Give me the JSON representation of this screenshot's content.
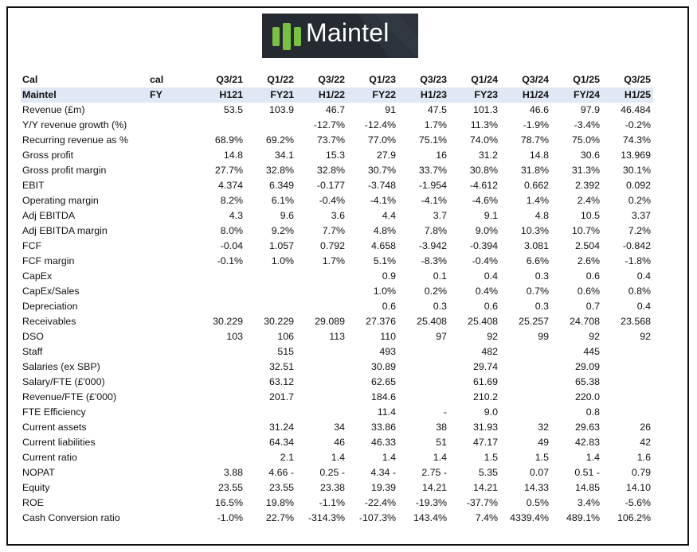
{
  "logo": {
    "text": "Maintel",
    "accent": "#78c142",
    "bg": "#252b31"
  },
  "header": [
    "Cal",
    "cal",
    "Q3/21",
    "Q1/22",
    "Q3/22",
    "Q1/23",
    "Q3/23",
    "Q1/24",
    "Q3/24",
    "Q1/25",
    "Q3/25"
  ],
  "subheader": [
    "Maintel",
    "FY",
    "H121",
    "FY21",
    "H1/22",
    "FY22",
    "H1/23",
    "FY23",
    "H1/24",
    "FY/24",
    "H1/25"
  ],
  "rows": [
    [
      "Revenue (£m)",
      "",
      "53.5",
      "103.9",
      "46.7",
      "91",
      "47.5",
      "101.3",
      "46.6",
      "97.9",
      "46.484"
    ],
    [
      "Y/Y revenue growth (%)",
      "",
      "",
      "",
      "-12.7%",
      "-12.4%",
      "1.7%",
      "11.3%",
      "-1.9%",
      "-3.4%",
      "-0.2%"
    ],
    [
      "Recurring revenue as %",
      "",
      "68.9%",
      "69.2%",
      "73.7%",
      "77.0%",
      "75.1%",
      "74.0%",
      "78.7%",
      "75.0%",
      "74.3%"
    ],
    [
      "Gross profit",
      "",
      "14.8",
      "34.1",
      "15.3",
      "27.9",
      "16",
      "31.2",
      "14.8",
      "30.6",
      "13.969"
    ],
    [
      "Gross profit margin",
      "",
      "27.7%",
      "32.8%",
      "32.8%",
      "30.7%",
      "33.7%",
      "30.8%",
      "31.8%",
      "31.3%",
      "30.1%"
    ],
    [
      "EBIT",
      "",
      "4.374",
      "6.349",
      "-0.177",
      "-3.748",
      "-1.954",
      "-4.612",
      "0.662",
      "2.392",
      "0.092"
    ],
    [
      "Operating margin",
      "",
      "8.2%",
      "6.1%",
      "-0.4%",
      "-4.1%",
      "-4.1%",
      "-4.6%",
      "1.4%",
      "2.4%",
      "0.2%"
    ],
    [
      "Adj EBITDA",
      "",
      "4.3",
      "9.6",
      "3.6",
      "4.4",
      "3.7",
      "9.1",
      "4.8",
      "10.5",
      "3.37"
    ],
    [
      "Adj EBITDA margin",
      "",
      "8.0%",
      "9.2%",
      "7.7%",
      "4.8%",
      "7.8%",
      "9.0%",
      "10.3%",
      "10.7%",
      "7.2%"
    ],
    [
      "FCF",
      "",
      "-0.04",
      "1.057",
      "0.792",
      "4.658",
      "-3.942",
      "-0.394",
      "3.081",
      "2.504",
      "-0.842"
    ],
    [
      "FCF margin",
      "",
      "-0.1%",
      "1.0%",
      "1.7%",
      "5.1%",
      "-8.3%",
      "-0.4%",
      "6.6%",
      "2.6%",
      "-1.8%"
    ],
    [
      "CapEx",
      "",
      "",
      "",
      "",
      "0.9",
      "0.1",
      "0.4",
      "0.3",
      "0.6",
      "0.4"
    ],
    [
      "CapEx/Sales",
      "",
      "",
      "",
      "",
      "1.0%",
      "0.2%",
      "0.4%",
      "0.7%",
      "0.6%",
      "0.8%"
    ],
    [
      "Depreciation",
      "",
      "",
      "",
      "",
      "0.6",
      "0.3",
      "0.6",
      "0.3",
      "0.7",
      "0.4"
    ],
    [
      "Receivables",
      "",
      "30.229",
      "30.229",
      "29.089",
      "27.376",
      "25.408",
      "25.408",
      "25.257",
      "24.708",
      "23.568"
    ],
    [
      "DSO",
      "",
      "103",
      "106",
      "113",
      "110",
      "97",
      "92",
      "99",
      "92",
      "92"
    ],
    [
      "Staff",
      "",
      "",
      "515",
      "",
      "493",
      "",
      "482",
      "",
      "445",
      ""
    ],
    [
      "Salaries (ex SBP)",
      "",
      "",
      "32.51",
      "",
      "30.89",
      "",
      "29.74",
      "",
      "29.09",
      ""
    ],
    [
      "Salary/FTE (£'000)",
      "",
      "",
      "63.12",
      "",
      "62.65",
      "",
      "61.69",
      "",
      "65.38",
      ""
    ],
    [
      "Revenue/FTE (£'000)",
      "",
      "",
      "201.7",
      "",
      "184.6",
      "",
      "210.2",
      "",
      "220.0",
      ""
    ],
    [
      "FTE Efficiency",
      "",
      "",
      "",
      "",
      "11.4",
      "-",
      "9.0",
      "",
      "0.8",
      ""
    ],
    [
      "Current assets",
      "",
      "",
      "31.24",
      "34",
      "33.86",
      "38",
      "31.93",
      "32",
      "29.63",
      "26"
    ],
    [
      "Current liabilities",
      "",
      "",
      "64.34",
      "46",
      "46.33",
      "51",
      "47.17",
      "49",
      "42.83",
      "42"
    ],
    [
      "Current ratio",
      "",
      "",
      "2.1",
      "1.4",
      "1.4",
      "1.4",
      "1.5",
      "1.5",
      "1.4",
      "1.6"
    ],
    [
      "NOPAT",
      "",
      "3.88",
      "4.66 -",
      "0.25 -",
      "4.34 -",
      "2.75 -",
      "5.35",
      "0.07",
      "0.51 -",
      "0.79"
    ],
    [
      "Equity",
      "",
      "23.55",
      "23.55",
      "23.38",
      "19.39",
      "14.21",
      "14.21",
      "14.33",
      "14.85",
      "14.10"
    ],
    [
      "ROE",
      "",
      "16.5%",
      "19.8%",
      "-1.1%",
      "-22.4%",
      "-19.3%",
      "-37.7%",
      "0.5%",
      "3.4%",
      "-5.6%"
    ],
    [
      "Cash Conversion ratio",
      "",
      "-1.0%",
      "22.7%",
      "-314.3%",
      "-107.3%",
      "143.4%",
      "7.4%",
      "4339.4%",
      "489.1%",
      "106.2%"
    ]
  ]
}
